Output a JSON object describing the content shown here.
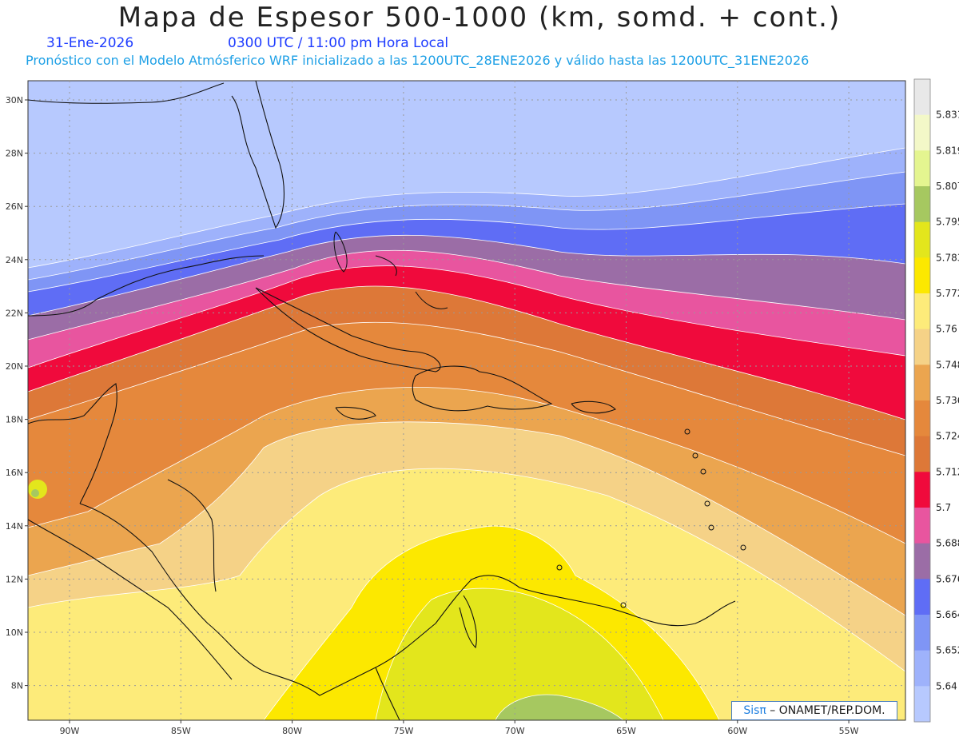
{
  "title": "Mapa de Espesor 500-1000 (km, somd. + cont.)",
  "date": "31-Ene-2026",
  "time": "0300 UTC / 11:00 pm Hora Local",
  "description": "Pronóstico con el Modelo Atmósferico WRF inicializado a las 1200UTC_28ENE2026 y válido hasta las  1200UTC_31ENE2026",
  "map": {
    "lat_labels": [
      "30N",
      "28N",
      "26N",
      "24N",
      "22N",
      "20N",
      "18N",
      "16N",
      "14N",
      "12N",
      "10N",
      "8N"
    ],
    "lon_labels": [
      "90W",
      "85W",
      "80W",
      "75W",
      "70W",
      "65W",
      "60W",
      "55W"
    ]
  },
  "colorbar": {
    "labels": [
      "5.831",
      "5.819",
      "5.807",
      "5.795",
      "5.783",
      "5.772",
      "5.76",
      "5.748",
      "5.736",
      "5.724",
      "5.712",
      "5.7",
      "5.688",
      "5.676",
      "5.664",
      "5.652",
      "5.64"
    ],
    "colors": [
      "#e8e8e8",
      "#f3f8c8",
      "#e4f590",
      "#a6c860",
      "#e3e61c",
      "#fce800",
      "#fdeb7a",
      "#f5d287",
      "#eba54f",
      "#e5883c",
      "#dd7838",
      "#f00a3c",
      "#e8559f",
      "#9b6da6",
      "#5f6df5",
      "#7f95f5",
      "#9eb2fb",
      "#b7c9fe"
    ]
  },
  "credit": {
    "sis": "Sis",
    "pi": "π",
    "org": " – ONAMET/REP.DOM."
  }
}
